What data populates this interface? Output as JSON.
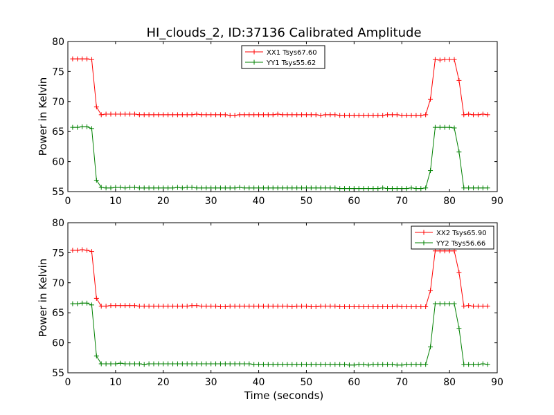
{
  "title": "HI_clouds_2, ID:37136 Calibrated Amplitude",
  "x_label": "Time (seconds)",
  "colors": {
    "xx": "#ff0000",
    "yy": "#008000"
  },
  "chart_data": [
    {
      "type": "line",
      "ylabel": "Power in Kelvin",
      "xlim": [
        0,
        90
      ],
      "ylim": [
        55,
        80
      ],
      "xticks": [
        "0",
        "10",
        "20",
        "30",
        "40",
        "50",
        "60",
        "70",
        "80",
        "90"
      ],
      "yticks": [
        "55",
        "60",
        "65",
        "70",
        "75",
        "80"
      ],
      "legend_position": "upper center",
      "x": [
        1,
        2,
        3,
        4,
        5,
        6,
        7,
        8,
        9,
        10,
        11,
        12,
        13,
        14,
        15,
        16,
        17,
        18,
        19,
        20,
        21,
        22,
        23,
        24,
        25,
        26,
        27,
        28,
        29,
        30,
        31,
        32,
        33,
        34,
        35,
        36,
        37,
        38,
        39,
        40,
        41,
        42,
        43,
        44,
        45,
        46,
        47,
        48,
        49,
        50,
        51,
        52,
        53,
        54,
        55,
        56,
        57,
        58,
        59,
        60,
        61,
        62,
        63,
        64,
        65,
        66,
        67,
        68,
        69,
        70,
        71,
        72,
        73,
        74,
        75,
        76,
        77,
        78,
        79,
        80,
        81,
        82,
        83,
        84,
        85,
        86,
        87,
        88
      ],
      "series": [
        {
          "name": "XX1 Tsys67.60",
          "color": "#ff0000",
          "values": [
            77.1,
            77.1,
            77.1,
            77.1,
            77.0,
            69.1,
            67.8,
            67.9,
            67.9,
            67.9,
            67.9,
            67.9,
            67.9,
            67.9,
            67.8,
            67.8,
            67.8,
            67.8,
            67.8,
            67.8,
            67.8,
            67.8,
            67.8,
            67.8,
            67.8,
            67.8,
            67.9,
            67.8,
            67.8,
            67.8,
            67.8,
            67.8,
            67.8,
            67.7,
            67.7,
            67.8,
            67.8,
            67.8,
            67.8,
            67.8,
            67.8,
            67.8,
            67.8,
            67.9,
            67.8,
            67.8,
            67.8,
            67.8,
            67.8,
            67.8,
            67.8,
            67.8,
            67.7,
            67.8,
            67.8,
            67.8,
            67.7,
            67.7,
            67.7,
            67.7,
            67.7,
            67.7,
            67.7,
            67.7,
            67.7,
            67.7,
            67.8,
            67.8,
            67.8,
            67.7,
            67.7,
            67.7,
            67.7,
            67.7,
            67.8,
            70.4,
            77.0,
            76.9,
            77.0,
            77.0,
            77.0,
            73.5,
            67.8,
            67.9,
            67.8,
            67.8,
            67.9,
            67.8
          ]
        },
        {
          "name": "YY1 Tsys55.62",
          "color": "#008000",
          "values": [
            65.7,
            65.7,
            65.8,
            65.8,
            65.5,
            56.9,
            55.7,
            55.6,
            55.6,
            55.7,
            55.7,
            55.6,
            55.7,
            55.7,
            55.6,
            55.6,
            55.6,
            55.6,
            55.6,
            55.6,
            55.6,
            55.6,
            55.7,
            55.6,
            55.7,
            55.7,
            55.6,
            55.6,
            55.6,
            55.6,
            55.6,
            55.6,
            55.6,
            55.6,
            55.6,
            55.7,
            55.6,
            55.6,
            55.6,
            55.6,
            55.6,
            55.6,
            55.6,
            55.6,
            55.6,
            55.6,
            55.6,
            55.6,
            55.6,
            55.6,
            55.6,
            55.6,
            55.6,
            55.6,
            55.6,
            55.6,
            55.5,
            55.5,
            55.5,
            55.5,
            55.5,
            55.5,
            55.5,
            55.5,
            55.5,
            55.6,
            55.5,
            55.5,
            55.5,
            55.5,
            55.5,
            55.6,
            55.5,
            55.5,
            55.6,
            58.5,
            65.7,
            65.7,
            65.7,
            65.7,
            65.6,
            61.6,
            55.6,
            55.6,
            55.6,
            55.6,
            55.6,
            55.6
          ]
        }
      ]
    },
    {
      "type": "line",
      "ylabel": "Power in Kelvin",
      "xlabel": "Time (seconds)",
      "xlim": [
        0,
        90
      ],
      "ylim": [
        55,
        80
      ],
      "xticks": [
        "0",
        "10",
        "20",
        "30",
        "40",
        "50",
        "60",
        "70",
        "80",
        "90"
      ],
      "yticks": [
        "55",
        "60",
        "65",
        "70",
        "75",
        "80"
      ],
      "legend_position": "upper right",
      "x": [
        1,
        2,
        3,
        4,
        5,
        6,
        7,
        8,
        9,
        10,
        11,
        12,
        13,
        14,
        15,
        16,
        17,
        18,
        19,
        20,
        21,
        22,
        23,
        24,
        25,
        26,
        27,
        28,
        29,
        30,
        31,
        32,
        33,
        34,
        35,
        36,
        37,
        38,
        39,
        40,
        41,
        42,
        43,
        44,
        45,
        46,
        47,
        48,
        49,
        50,
        51,
        52,
        53,
        54,
        55,
        56,
        57,
        58,
        59,
        60,
        61,
        62,
        63,
        64,
        65,
        66,
        67,
        68,
        69,
        70,
        71,
        72,
        73,
        74,
        75,
        76,
        77,
        78,
        79,
        80,
        81,
        82,
        83,
        84,
        85,
        86,
        87,
        88
      ],
      "series": [
        {
          "name": "XX2 Tsys65.90",
          "color": "#ff0000",
          "values": [
            75.4,
            75.4,
            75.5,
            75.4,
            75.2,
            67.4,
            66.1,
            66.1,
            66.2,
            66.2,
            66.2,
            66.2,
            66.2,
            66.2,
            66.1,
            66.1,
            66.1,
            66.1,
            66.1,
            66.1,
            66.1,
            66.1,
            66.1,
            66.1,
            66.1,
            66.2,
            66.2,
            66.1,
            66.1,
            66.1,
            66.1,
            66.0,
            66.0,
            66.1,
            66.1,
            66.1,
            66.1,
            66.1,
            66.1,
            66.1,
            66.1,
            66.1,
            66.1,
            66.1,
            66.1,
            66.1,
            66.0,
            66.1,
            66.1,
            66.1,
            66.0,
            66.0,
            66.1,
            66.1,
            66.1,
            66.1,
            66.0,
            66.0,
            66.0,
            66.0,
            66.0,
            66.0,
            66.0,
            66.0,
            66.0,
            66.0,
            66.0,
            66.0,
            66.1,
            66.0,
            66.0,
            66.0,
            66.0,
            66.0,
            66.0,
            68.7,
            75.3,
            75.3,
            75.3,
            75.3,
            75.3,
            71.7,
            66.1,
            66.2,
            66.1,
            66.1,
            66.1,
            66.1
          ]
        },
        {
          "name": "YY2 Tsys56.66",
          "color": "#008000",
          "values": [
            66.5,
            66.5,
            66.6,
            66.6,
            66.3,
            57.8,
            56.5,
            56.5,
            56.5,
            56.5,
            56.6,
            56.5,
            56.5,
            56.5,
            56.5,
            56.4,
            56.5,
            56.5,
            56.5,
            56.5,
            56.5,
            56.5,
            56.5,
            56.5,
            56.5,
            56.5,
            56.5,
            56.5,
            56.5,
            56.5,
            56.5,
            56.5,
            56.5,
            56.5,
            56.5,
            56.5,
            56.5,
            56.5,
            56.4,
            56.4,
            56.4,
            56.4,
            56.4,
            56.4,
            56.4,
            56.4,
            56.4,
            56.4,
            56.4,
            56.4,
            56.4,
            56.4,
            56.4,
            56.4,
            56.4,
            56.4,
            56.4,
            56.4,
            56.3,
            56.3,
            56.4,
            56.4,
            56.3,
            56.4,
            56.4,
            56.4,
            56.4,
            56.4,
            56.3,
            56.3,
            56.4,
            56.4,
            56.4,
            56.4,
            56.4,
            59.3,
            66.5,
            66.5,
            66.5,
            66.5,
            66.5,
            62.4,
            56.4,
            56.4,
            56.4,
            56.4,
            56.5,
            56.4
          ]
        }
      ]
    }
  ]
}
